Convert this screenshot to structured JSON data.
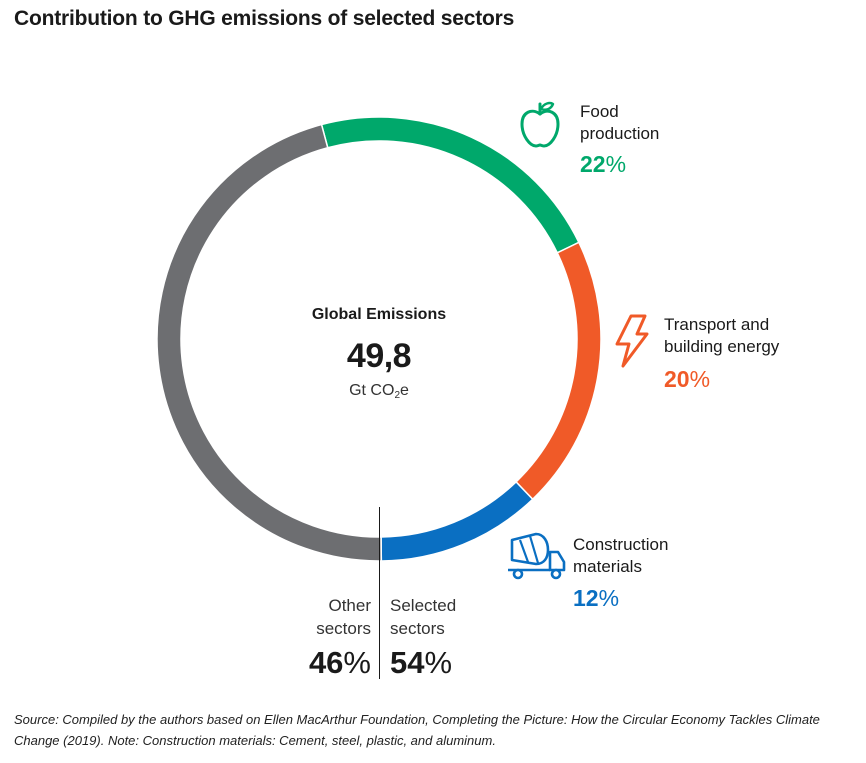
{
  "title": "Contribution to GHG emissions of selected sectors",
  "chart_data": {
    "type": "pie",
    "title": "Contribution to GHG emissions of selected sectors",
    "center": {
      "label": "Global Emissions",
      "value": "49,8",
      "unit_main": "Gt CO",
      "unit_sub": "2",
      "unit_tail": "e"
    },
    "slices": [
      {
        "name": "Food production",
        "line1": "Food",
        "line2": "production",
        "value": 22,
        "pct_num": "22",
        "color": "#00a86b",
        "icon": "apple-icon"
      },
      {
        "name": "Transport and building energy",
        "line1": "Transport and",
        "line2": "building energy",
        "value": 20,
        "pct_num": "20",
        "color": "#f05a28",
        "icon": "lightning-icon"
      },
      {
        "name": "Construction materials",
        "line1": "Construction",
        "line2": "materials",
        "value": 12,
        "pct_num": "12",
        "color": "#0a6fc2",
        "icon": "cement-mixer-icon"
      },
      {
        "name": "Other sectors",
        "value": 46,
        "color": "#6d6e71"
      }
    ],
    "split": {
      "other": {
        "line1": "Other",
        "line2": "sectors",
        "pct_num": "46"
      },
      "selected": {
        "line1": "Selected",
        "line2": "sectors",
        "pct_num": "54"
      }
    },
    "percent_sign": "%"
  },
  "source": "Source: Compiled by the authors based on Ellen MacArthur Foundation, Completing the Picture: How the Circular Economy Tackles Climate Change (2019). Note: Construction materials: Cement, steel, plastic, and aluminum."
}
